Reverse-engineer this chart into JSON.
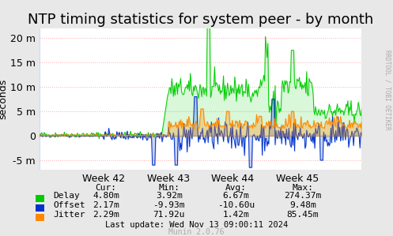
{
  "title": "NTP timing statistics for system peer - by month",
  "ylabel": "seconds",
  "background_color": "#e8e8e8",
  "plot_bg_color": "#ffffff",
  "grid_color": "#ff9999",
  "title_fontsize": 13,
  "axis_fontsize": 9,
  "tick_fontsize": 9,
  "ylim": [
    -7000000,
    22000000
  ],
  "yticks": [
    -5000000,
    0,
    5000000,
    10000000,
    15000000,
    20000000
  ],
  "ytick_labels": [
    "-5 m",
    "0",
    "5 m",
    "10 m",
    "15 m",
    "20 m"
  ],
  "week_labels": [
    "Week 42",
    "Week 43",
    "Week 44",
    "Week 45"
  ],
  "delay_color": "#00cc00",
  "offset_color": "#0033cc",
  "jitter_color": "#ff8800",
  "legend_items": [
    {
      "label": "Delay",
      "color": "#00cc00"
    },
    {
      "label": "Offset",
      "color": "#0033cc"
    },
    {
      "label": "Jitter",
      "color": "#ff8800"
    }
  ],
  "stats": {
    "headers": [
      "Cur:",
      "Min:",
      "Avg:",
      "Max:"
    ],
    "delay": [
      "4.80m",
      "3.92m",
      "6.67m",
      "274.37m"
    ],
    "offset": [
      "2.17m",
      "-9.93m",
      "-10.60u",
      "9.48m"
    ],
    "jitter": [
      "2.29m",
      "71.92u",
      "1.42m",
      "85.45m"
    ]
  },
  "last_update": "Last update: Wed Nov 13 09:00:11 2024",
  "munin_version": "Munin 2.0.76",
  "rrdtool_label": "RRDTOOL / TOBI OETIKER",
  "num_points": 400
}
